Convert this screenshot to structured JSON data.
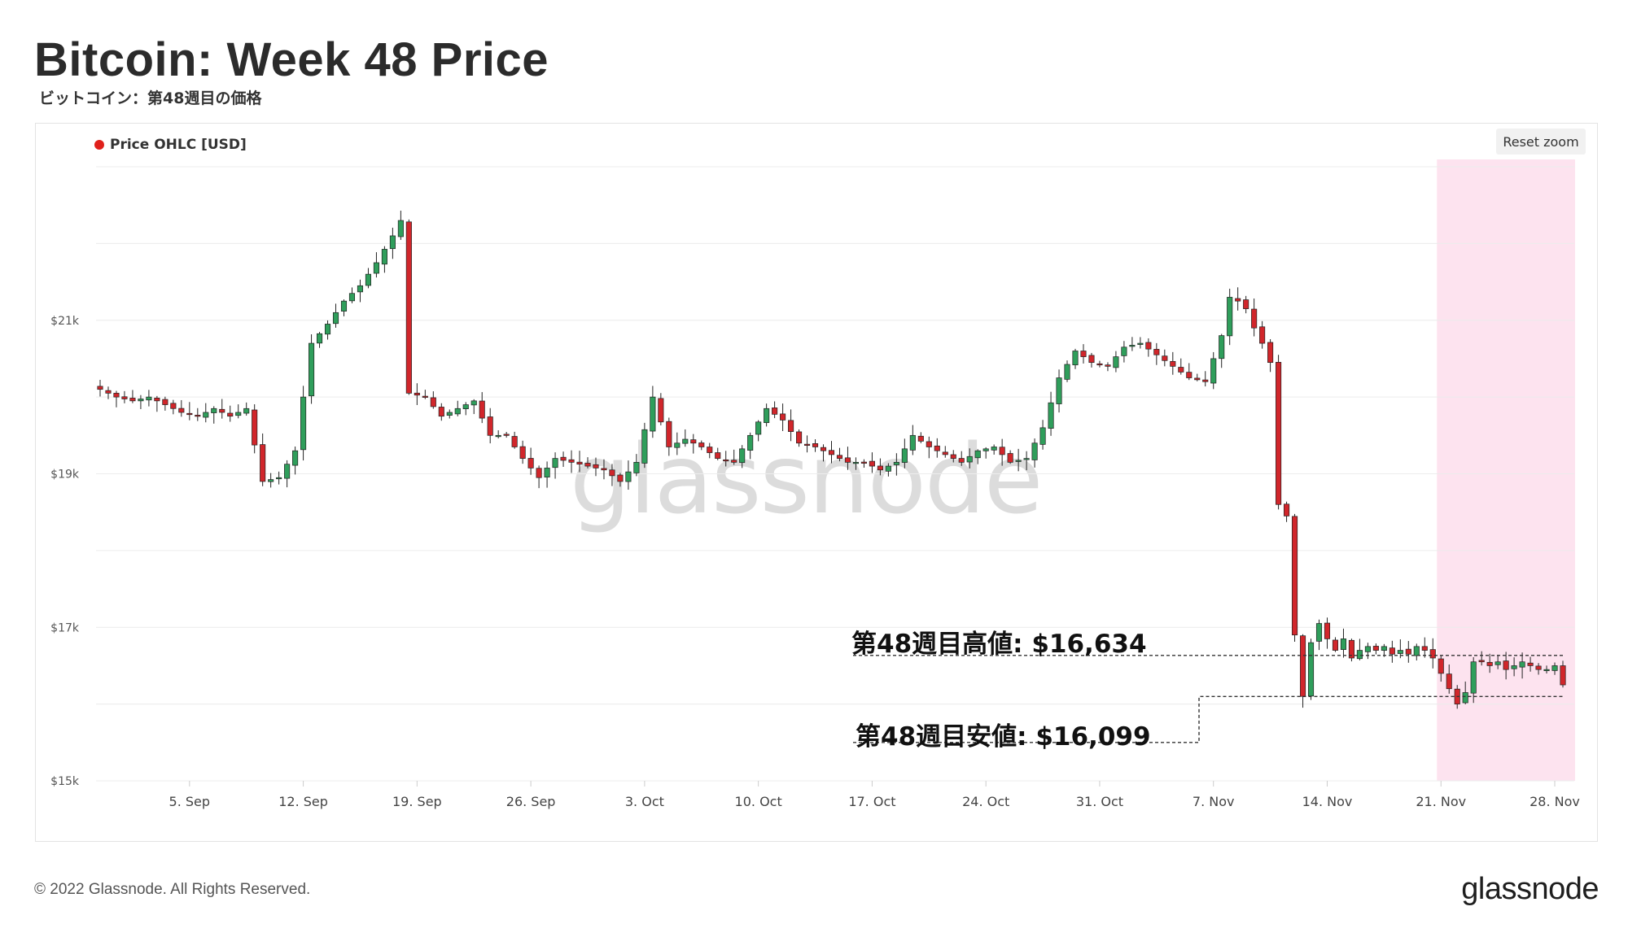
{
  "header": {
    "title": "Bitcoin: Week 48 Price",
    "subtitle": "ビットコイン：第48週目の価格"
  },
  "legend": {
    "label": "Price OHLC [USD]",
    "color": "#e0201b"
  },
  "controls": {
    "reset_zoom": "Reset zoom"
  },
  "watermark": "glassnode",
  "footer": {
    "copyright": "© 2022 Glassnode. All Rights Reserved.",
    "brand": "glassnode"
  },
  "annotations": {
    "high_label": "第48週目高値: $16,634",
    "low_label": "第48週目安値: $16,099"
  },
  "colors": {
    "up": "#2f9e5b",
    "down": "#d1262b",
    "highlight": "#fde3ef",
    "grid": "#ececec"
  },
  "chart_data": {
    "type": "candlestick",
    "ylim": [
      15000,
      23000
    ],
    "y_ticks": [
      {
        "value": 15000,
        "label": "$15k"
      },
      {
        "value": 17000,
        "label": "$17k"
      },
      {
        "value": 19000,
        "label": "$19k"
      },
      {
        "value": 21000,
        "label": "$21k"
      }
    ],
    "x_ticks": [
      {
        "index": 11,
        "label": "5. Sep"
      },
      {
        "index": 25,
        "label": "12. Sep"
      },
      {
        "index": 39,
        "label": "19. Sep"
      },
      {
        "index": 53,
        "label": "26. Sep"
      },
      {
        "index": 67,
        "label": "3. Oct"
      },
      {
        "index": 81,
        "label": "10. Oct"
      },
      {
        "index": 95,
        "label": "17. Oct"
      },
      {
        "index": 109,
        "label": "24. Oct"
      },
      {
        "index": 123,
        "label": "31. Oct"
      },
      {
        "index": 137,
        "label": "7. Nov"
      },
      {
        "index": 151,
        "label": "14. Nov"
      },
      {
        "index": 165,
        "label": "21. Nov"
      },
      {
        "index": 179,
        "label": "28. Nov"
      }
    ],
    "highlight_range": {
      "start": 164.5,
      "end": 181.5
    },
    "week_high": 16634,
    "week_low": 16099,
    "close_points": [
      [
        0,
        20100
      ],
      [
        2,
        20000
      ],
      [
        4,
        19950
      ],
      [
        6,
        20000
      ],
      [
        8,
        19900
      ],
      [
        10,
        19800
      ],
      [
        12,
        19750
      ],
      [
        14,
        19850
      ],
      [
        16,
        19750
      ],
      [
        18,
        19850
      ],
      [
        20,
        18900
      ],
      [
        22,
        18950
      ],
      [
        24,
        19300
      ],
      [
        26,
        20700
      ],
      [
        28,
        20950
      ],
      [
        30,
        21250
      ],
      [
        32,
        21450
      ],
      [
        34,
        21750
      ],
      [
        36,
        22100
      ],
      [
        37,
        22300
      ],
      [
        38,
        20050
      ],
      [
        40,
        20000
      ],
      [
        42,
        19750
      ],
      [
        44,
        19850
      ],
      [
        46,
        19950
      ],
      [
        48,
        19500
      ],
      [
        50,
        19500
      ],
      [
        52,
        19200
      ],
      [
        54,
        18950
      ],
      [
        56,
        19200
      ],
      [
        58,
        19150
      ],
      [
        60,
        19100
      ],
      [
        62,
        19050
      ],
      [
        64,
        18900
      ],
      [
        66,
        19150
      ],
      [
        68,
        20000
      ],
      [
        70,
        19350
      ],
      [
        72,
        19450
      ],
      [
        74,
        19350
      ],
      [
        76,
        19200
      ],
      [
        78,
        19150
      ],
      [
        80,
        19500
      ],
      [
        82,
        19850
      ],
      [
        84,
        19700
      ],
      [
        86,
        19400
      ],
      [
        88,
        19350
      ],
      [
        90,
        19250
      ],
      [
        92,
        19150
      ],
      [
        94,
        19150
      ],
      [
        96,
        19050
      ],
      [
        98,
        19150
      ],
      [
        100,
        19500
      ],
      [
        102,
        19350
      ],
      [
        104,
        19250
      ],
      [
        106,
        19150
      ],
      [
        108,
        19300
      ],
      [
        110,
        19350
      ],
      [
        112,
        19150
      ],
      [
        114,
        19200
      ],
      [
        116,
        19600
      ],
      [
        118,
        20250
      ],
      [
        120,
        20600
      ],
      [
        122,
        20450
      ],
      [
        124,
        20400
      ],
      [
        126,
        20650
      ],
      [
        128,
        20700
      ],
      [
        130,
        20550
      ],
      [
        132,
        20400
      ],
      [
        134,
        20250
      ],
      [
        136,
        20200
      ],
      [
        138,
        20800
      ],
      [
        139,
        21300
      ],
      [
        140,
        21250
      ],
      [
        141,
        21150
      ],
      [
        142,
        20900
      ],
      [
        143,
        20700
      ],
      [
        144,
        20450
      ],
      [
        145,
        18600
      ],
      [
        146,
        18450
      ],
      [
        147,
        16900
      ],
      [
        148,
        16100
      ],
      [
        149,
        16800
      ],
      [
        150,
        17050
      ],
      [
        151,
        16850
      ],
      [
        152,
        16700
      ],
      [
        153,
        16850
      ],
      [
        154,
        16600
      ],
      [
        155,
        16700
      ],
      [
        156,
        16750
      ],
      [
        157,
        16700
      ],
      [
        158,
        16750
      ],
      [
        159,
        16650
      ],
      [
        160,
        16700
      ],
      [
        161,
        16650
      ],
      [
        162,
        16750
      ],
      [
        163,
        16700
      ],
      [
        164,
        16600
      ],
      [
        165,
        16400
      ],
      [
        166,
        16200
      ],
      [
        167,
        16000
      ],
      [
        168,
        16150
      ],
      [
        169,
        16550
      ],
      [
        170,
        16550
      ],
      [
        171,
        16500
      ],
      [
        172,
        16550
      ],
      [
        173,
        16450
      ],
      [
        174,
        16500
      ],
      [
        175,
        16550
      ],
      [
        176,
        16500
      ],
      [
        177,
        16450
      ],
      [
        178,
        16450
      ],
      [
        179,
        16500
      ],
      [
        180,
        16250
      ]
    ]
  }
}
